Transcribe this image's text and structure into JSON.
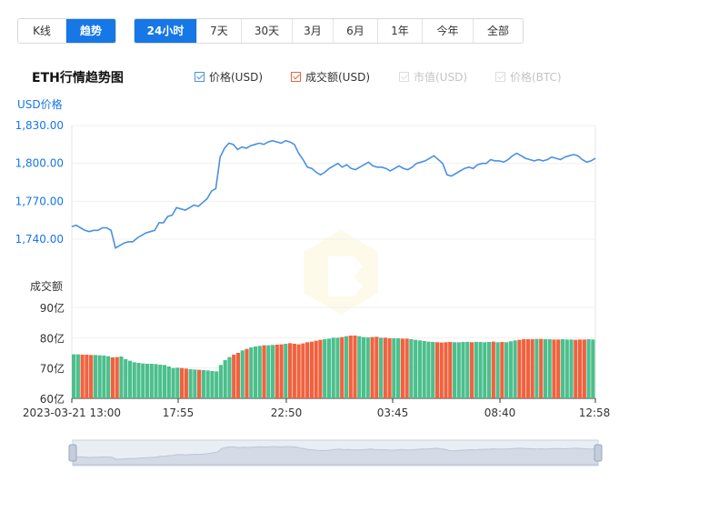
{
  "view_tabs": [
    {
      "label": "K线",
      "active": false
    },
    {
      "label": "趋势",
      "active": true
    }
  ],
  "range_tabs": [
    {
      "label": "24小时",
      "active": true
    },
    {
      "label": "7天",
      "active": false
    },
    {
      "label": "30天",
      "active": false
    },
    {
      "label": "3月",
      "active": false
    },
    {
      "label": "6月",
      "active": false
    },
    {
      "label": "1年",
      "active": false
    },
    {
      "label": "今年",
      "active": false
    },
    {
      "label": "全部",
      "active": false
    }
  ],
  "chart_title": "ETH行情趋势图",
  "legend": [
    {
      "label": "价格(USD)",
      "checked": true,
      "color": "#4a90e2"
    },
    {
      "label": "成交额(USD)",
      "checked": true,
      "color": "#f0623f"
    },
    {
      "label": "市值(USD)",
      "checked": false,
      "color": "#cccccc"
    },
    {
      "label": "价格(BTC)",
      "checked": false,
      "color": "#cccccc"
    }
  ],
  "colors": {
    "accent": "#1677e6",
    "price_line": "#4a90e2",
    "bar_up": "#4cbf8d",
    "bar_down": "#f0623f"
  },
  "chart_data": {
    "type": "line",
    "price_axis": {
      "label": "USD价格",
      "ticks": [
        "1,830.00",
        "1,800.00",
        "1,770.00",
        "1,740.00"
      ],
      "ylim": [
        1722,
        1830
      ]
    },
    "volume_axis": {
      "label": "成交额",
      "ticks": [
        "90亿",
        "80亿",
        "70亿",
        "60亿"
      ],
      "ylim": [
        60,
        90
      ]
    },
    "x_ticks": [
      "2023-03-21 13:00",
      "17:55",
      "22:50",
      "03:45",
      "08:40",
      "12:58"
    ],
    "price_series": {
      "name": "价格(USD)",
      "x": [
        0,
        1,
        2,
        3,
        4,
        5,
        6,
        7,
        8,
        9,
        10,
        11,
        12,
        13,
        14,
        15,
        16,
        17,
        18,
        19,
        20,
        21,
        22,
        23,
        24,
        25,
        26,
        27,
        28,
        29,
        30,
        31,
        32,
        33,
        34,
        35,
        36,
        37,
        38,
        39,
        40,
        41,
        42,
        43,
        44,
        45,
        46,
        47,
        48,
        49,
        50,
        51,
        52,
        53,
        54,
        55,
        56,
        57,
        58,
        59,
        60,
        61,
        62,
        63,
        64,
        65,
        66,
        67,
        68,
        69,
        70,
        71,
        72,
        73,
        74,
        75,
        76,
        77,
        78,
        79,
        80,
        81,
        82,
        83,
        84,
        85,
        86,
        87,
        88,
        89,
        90,
        91,
        92,
        93,
        94,
        95,
        96,
        97,
        98,
        99,
        100,
        101,
        102,
        103,
        104,
        105,
        106,
        107,
        108,
        109,
        110,
        111,
        112,
        113,
        114,
        115,
        116,
        117,
        118,
        119,
        120
      ],
      "values": [
        1750,
        1751,
        1749,
        1747,
        1746,
        1747,
        1747,
        1749,
        1749,
        1747,
        1733,
        1735,
        1737,
        1738,
        1738,
        1741,
        1743,
        1745,
        1746,
        1747,
        1753,
        1753,
        1758,
        1759,
        1765,
        1764,
        1763,
        1765,
        1767,
        1766,
        1769,
        1772,
        1778,
        1780,
        1805,
        1812,
        1816,
        1815,
        1811,
        1813,
        1812,
        1814,
        1815,
        1816,
        1815,
        1817,
        1818,
        1817,
        1816,
        1818,
        1817,
        1815,
        1808,
        1803,
        1797,
        1796,
        1793,
        1791,
        1793,
        1796,
        1798,
        1800,
        1797,
        1799,
        1796,
        1795,
        1797,
        1799,
        1801,
        1798,
        1797,
        1797,
        1796,
        1794,
        1796,
        1798,
        1796,
        1795,
        1797,
        1800,
        1801,
        1802,
        1804,
        1806,
        1803,
        1800,
        1791,
        1790,
        1792,
        1794,
        1796,
        1797,
        1796,
        1799,
        1800,
        1800,
        1803,
        1802,
        1802,
        1801,
        1803,
        1806,
        1808,
        1806,
        1804,
        1803,
        1802,
        1803,
        1802,
        1803,
        1805,
        1804,
        1803,
        1805,
        1806,
        1807,
        1806,
        1803,
        1801,
        1802,
        1804
      ]
    },
    "volume_series": {
      "name": "成交额(USD)",
      "values": [
        74.5,
        74.5,
        74.4,
        74.4,
        74.3,
        74.3,
        74.2,
        74.1,
        73.9,
        73.5,
        73.6,
        73.8,
        72.9,
        72.4,
        71.9,
        71.7,
        71.5,
        71.4,
        71.4,
        71.3,
        71.1,
        71.0,
        70.5,
        70.0,
        70.1,
        70.0,
        69.8,
        69.6,
        69.5,
        69.4,
        69.3,
        69.2,
        69.0,
        68.9,
        71.0,
        72.6,
        73.6,
        74.4,
        75.0,
        75.8,
        76.3,
        76.8,
        77.1,
        77.3,
        77.5,
        77.5,
        77.6,
        77.7,
        77.8,
        78.0,
        78.2,
        78.0,
        77.8,
        78.1,
        78.5,
        78.7,
        79.0,
        79.3,
        79.5,
        79.7,
        80.0,
        80.0,
        80.2,
        80.5,
        80.7,
        80.7,
        80.5,
        80.2,
        80.1,
        80.2,
        80.3,
        80.0,
        80.0,
        79.8,
        79.8,
        79.8,
        79.7,
        79.7,
        79.5,
        79.3,
        79.1,
        78.9,
        78.7,
        78.6,
        78.5,
        78.4,
        78.5,
        78.6,
        78.5,
        78.5,
        78.6,
        78.6,
        78.5,
        78.6,
        78.6,
        78.5,
        78.6,
        78.7,
        78.5,
        78.6,
        78.5,
        78.8,
        79.1,
        79.3,
        79.5,
        79.5,
        79.5,
        79.6,
        79.6,
        79.5,
        79.5,
        79.4,
        79.4,
        79.5,
        79.4,
        79.4,
        79.3,
        79.4,
        79.4,
        79.5,
        79.4
      ]
    }
  }
}
